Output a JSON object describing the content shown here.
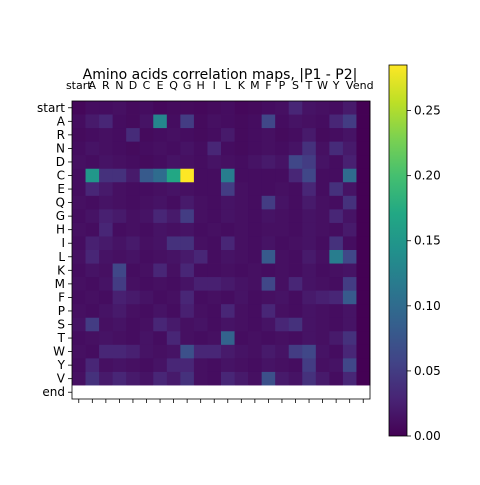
{
  "chart_data": {
    "type": "heatmap",
    "title": "Amino acids correlation maps, |P1 - P2|",
    "x_labels": [
      "start",
      "A",
      "R",
      "N",
      "D",
      "C",
      "E",
      "Q",
      "G",
      "H",
      "I",
      "L",
      "K",
      "M",
      "F",
      "P",
      "S",
      "T",
      "W",
      "Y",
      "V",
      "end"
    ],
    "y_labels": [
      "start",
      "A",
      "R",
      "N",
      "D",
      "C",
      "E",
      "Q",
      "G",
      "H",
      "I",
      "L",
      "K",
      "M",
      "F",
      "P",
      "S",
      "T",
      "W",
      "Y",
      "V",
      "end"
    ],
    "colorbar": {
      "min": 0.0,
      "max": 0.285,
      "ticks": [
        "0.00",
        "0.05",
        "0.10",
        "0.15",
        "0.20",
        "0.25"
      ],
      "colormap": "viridis"
    },
    "values": [
      [
        0.005,
        0.01,
        0.01,
        0.012,
        0.008,
        0.01,
        0.006,
        0.008,
        0.007,
        0.006,
        0.008,
        0.01,
        0.006,
        0.007,
        0.01,
        0.012,
        0.03,
        0.015,
        0.012,
        0.01,
        0.02,
        0.0
      ],
      [
        0.01,
        0.02,
        0.03,
        0.01,
        0.008,
        0.015,
        0.13,
        0.01,
        0.05,
        0.008,
        0.012,
        0.01,
        0.008,
        0.01,
        0.06,
        0.01,
        0.015,
        0.012,
        0.01,
        0.03,
        0.05,
        0.0
      ],
      [
        0.008,
        0.01,
        0.012,
        0.01,
        0.035,
        0.008,
        0.01,
        0.012,
        0.01,
        0.008,
        0.01,
        0.02,
        0.008,
        0.01,
        0.012,
        0.008,
        0.01,
        0.02,
        0.008,
        0.01,
        0.015,
        0.0
      ],
      [
        0.01,
        0.015,
        0.012,
        0.01,
        0.008,
        0.01,
        0.012,
        0.01,
        0.015,
        0.01,
        0.03,
        0.01,
        0.008,
        0.01,
        0.012,
        0.01,
        0.015,
        0.04,
        0.012,
        0.035,
        0.02,
        0.0
      ],
      [
        0.012,
        0.01,
        0.015,
        0.012,
        0.01,
        0.008,
        0.01,
        0.015,
        0.012,
        0.01,
        0.015,
        0.012,
        0.01,
        0.015,
        0.02,
        0.015,
        0.06,
        0.05,
        0.015,
        0.01,
        0.025,
        0.0
      ],
      [
        0.01,
        0.15,
        0.04,
        0.04,
        0.02,
        0.08,
        0.1,
        0.17,
        0.285,
        0.01,
        0.01,
        0.12,
        0.01,
        0.01,
        0.01,
        0.01,
        0.03,
        0.06,
        0.01,
        0.01,
        0.1,
        0.0
      ],
      [
        0.01,
        0.03,
        0.02,
        0.012,
        0.01,
        0.01,
        0.012,
        0.015,
        0.012,
        0.01,
        0.01,
        0.05,
        0.012,
        0.01,
        0.01,
        0.012,
        0.01,
        0.03,
        0.01,
        0.04,
        0.015,
        0.0
      ],
      [
        0.012,
        0.01,
        0.015,
        0.012,
        0.01,
        0.012,
        0.015,
        0.01,
        0.02,
        0.012,
        0.01,
        0.015,
        0.012,
        0.01,
        0.05,
        0.015,
        0.01,
        0.02,
        0.012,
        0.01,
        0.04,
        0.0
      ],
      [
        0.01,
        0.015,
        0.025,
        0.02,
        0.012,
        0.015,
        0.03,
        0.02,
        0.05,
        0.012,
        0.01,
        0.015,
        0.012,
        0.01,
        0.015,
        0.012,
        0.01,
        0.015,
        0.012,
        0.03,
        0.015,
        0.0
      ],
      [
        0.012,
        0.01,
        0.03,
        0.01,
        0.012,
        0.01,
        0.015,
        0.012,
        0.015,
        0.01,
        0.012,
        0.01,
        0.012,
        0.01,
        0.012,
        0.012,
        0.01,
        0.015,
        0.012,
        0.01,
        0.02,
        0.0
      ],
      [
        0.01,
        0.025,
        0.02,
        0.015,
        0.02,
        0.012,
        0.015,
        0.04,
        0.04,
        0.012,
        0.01,
        0.03,
        0.012,
        0.01,
        0.015,
        0.01,
        0.012,
        0.015,
        0.01,
        0.04,
        0.01,
        0.0
      ],
      [
        0.012,
        0.03,
        0.015,
        0.012,
        0.015,
        0.01,
        0.012,
        0.015,
        0.02,
        0.03,
        0.01,
        0.015,
        0.012,
        0.01,
        0.08,
        0.012,
        0.01,
        0.02,
        0.012,
        0.12,
        0.06,
        0.0
      ],
      [
        0.01,
        0.015,
        0.012,
        0.06,
        0.01,
        0.012,
        0.03,
        0.012,
        0.03,
        0.01,
        0.01,
        0.012,
        0.01,
        0.012,
        0.01,
        0.012,
        0.01,
        0.015,
        0.01,
        0.012,
        0.015,
        0.0
      ],
      [
        0.012,
        0.01,
        0.015,
        0.05,
        0.012,
        0.01,
        0.012,
        0.01,
        0.015,
        0.025,
        0.025,
        0.02,
        0.015,
        0.012,
        0.06,
        0.012,
        0.03,
        0.015,
        0.012,
        0.01,
        0.05,
        0.0
      ],
      [
        0.01,
        0.012,
        0.01,
        0.025,
        0.02,
        0.015,
        0.01,
        0.012,
        0.03,
        0.01,
        0.012,
        0.01,
        0.015,
        0.01,
        0.012,
        0.015,
        0.01,
        0.02,
        0.025,
        0.03,
        0.08,
        0.0
      ],
      [
        0.012,
        0.01,
        0.015,
        0.02,
        0.012,
        0.01,
        0.015,
        0.01,
        0.025,
        0.012,
        0.01,
        0.03,
        0.012,
        0.01,
        0.03,
        0.012,
        0.01,
        0.015,
        0.012,
        0.01,
        0.015,
        0.0
      ],
      [
        0.015,
        0.05,
        0.012,
        0.015,
        0.01,
        0.012,
        0.03,
        0.02,
        0.012,
        0.015,
        0.01,
        0.015,
        0.012,
        0.01,
        0.015,
        0.03,
        0.04,
        0.015,
        0.012,
        0.01,
        0.015,
        0.0
      ],
      [
        0.01,
        0.012,
        0.015,
        0.012,
        0.01,
        0.015,
        0.01,
        0.03,
        0.012,
        0.01,
        0.012,
        0.09,
        0.01,
        0.012,
        0.01,
        0.012,
        0.01,
        0.015,
        0.012,
        0.02,
        0.04,
        0.0
      ],
      [
        0.012,
        0.01,
        0.03,
        0.03,
        0.025,
        0.015,
        0.012,
        0.015,
        0.07,
        0.03,
        0.03,
        0.02,
        0.015,
        0.012,
        0.02,
        0.015,
        0.05,
        0.06,
        0.015,
        0.01,
        0.03,
        0.0
      ],
      [
        0.01,
        0.03,
        0.012,
        0.015,
        0.012,
        0.01,
        0.015,
        0.03,
        0.03,
        0.012,
        0.01,
        0.015,
        0.012,
        0.01,
        0.015,
        0.012,
        0.01,
        0.05,
        0.012,
        0.015,
        0.06,
        0.0
      ],
      [
        0.012,
        0.04,
        0.02,
        0.03,
        0.02,
        0.015,
        0.03,
        0.02,
        0.04,
        0.012,
        0.01,
        0.03,
        0.02,
        0.012,
        0.07,
        0.02,
        0.015,
        0.04,
        0.02,
        0.01,
        0.03,
        0.0
      ],
      [
        null,
        null,
        null,
        null,
        null,
        null,
        null,
        null,
        null,
        null,
        null,
        null,
        null,
        null,
        null,
        null,
        null,
        null,
        null,
        null,
        null,
        null
      ]
    ]
  }
}
